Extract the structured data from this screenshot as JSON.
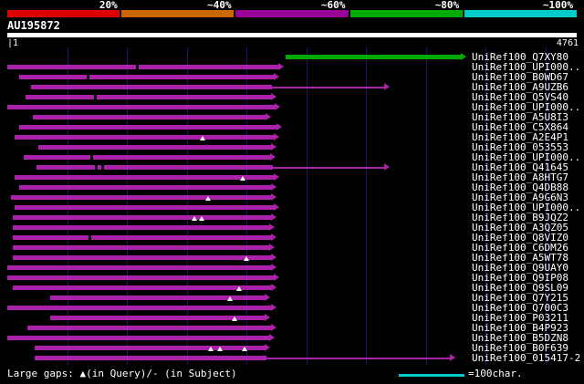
{
  "chart_data": {
    "type": "bar",
    "subtype": "blast-alignment-overview",
    "title": "AU195872",
    "x_axis": {
      "min": 1,
      "max": 4761,
      "gridline_interval": 500,
      "grid": true
    },
    "identity_scale": [
      {
        "label": "20%",
        "color": "#dd0000"
      },
      {
        "label": "~40%",
        "color": "#cc6600"
      },
      {
        "label": "~60%",
        "color": "#990099"
      },
      {
        "label": "~80%",
        "color": "#00aa00"
      },
      {
        "label": "~100%",
        "color": "#00cccc"
      }
    ],
    "hits": [
      {
        "label": "UniRef100_Q7XY80",
        "color": "#00aa00",
        "start": 2330,
        "end": 3790
      },
      {
        "label": "UniRef100_UPI000..",
        "color": "#aa22aa",
        "start": 1,
        "end": 2265,
        "dashes": [
          1085
        ]
      },
      {
        "label": "UniRef100_B0WD67",
        "color": "#aa22aa",
        "start": 100,
        "end": 2230,
        "dashes": [
          670
        ]
      },
      {
        "label": "UniRef100_A9UZB6",
        "color": "#aa22aa",
        "start": 200,
        "end": 2215,
        "thin_end": 3150
      },
      {
        "label": "UniRef100_Q5VS40",
        "color": "#aa22aa",
        "start": 155,
        "end": 2205,
        "dashes": [
          730
        ]
      },
      {
        "label": "UniRef100_UPI000..",
        "color": "#aa22aa",
        "start": 1,
        "end": 2235
      },
      {
        "label": "UniRef100_A5U8I3",
        "color": "#aa22aa",
        "start": 215,
        "end": 2160
      },
      {
        "label": "UniRef100_C5X864",
        "color": "#aa22aa",
        "start": 100,
        "end": 2250
      },
      {
        "label": "UniRef100_A2E4P1",
        "color": "#aa22aa",
        "start": 60,
        "end": 2230,
        "gaps": [
          1635
        ]
      },
      {
        "label": "UniRef100_053553",
        "color": "#aa22aa",
        "start": 260,
        "end": 2205
      },
      {
        "label": "UniRef100_UPI000..",
        "color": "#aa22aa",
        "start": 140,
        "end": 2195,
        "dashes": [
          700
        ]
      },
      {
        "label": "UniRef100_Q41645",
        "color": "#aa22aa",
        "start": 245,
        "end": 2220,
        "thin_end": 3150,
        "dashes": [
          740,
          795
        ]
      },
      {
        "label": "UniRef100_A8HTG7",
        "color": "#aa22aa",
        "start": 60,
        "end": 2230,
        "gaps": [
          1970
        ]
      },
      {
        "label": "UniRef100_Q4DB88",
        "color": "#aa22aa",
        "start": 100,
        "end": 2205
      },
      {
        "label": "UniRef100_A9G6N3",
        "color": "#aa22aa",
        "start": 30,
        "end": 2205,
        "gaps": [
          1680
        ]
      },
      {
        "label": "UniRef100_UPI000..",
        "color": "#aa22aa",
        "start": 60,
        "end": 2230
      },
      {
        "label": "UniRef100_B9JQZ2",
        "color": "#aa22aa",
        "start": 45,
        "end": 2205,
        "gaps": [
          1565,
          1625
        ]
      },
      {
        "label": "UniRef100_A3QZ05",
        "color": "#aa22aa",
        "start": 45,
        "end": 2190
      },
      {
        "label": "UniRef100_Q8VIZ0",
        "color": "#aa22aa",
        "start": 45,
        "end": 2205,
        "dashes": [
          690
        ]
      },
      {
        "label": "UniRef100_C6DM26",
        "color": "#aa22aa",
        "start": 45,
        "end": 2190
      },
      {
        "label": "UniRef100_A5WT78",
        "color": "#aa22aa",
        "start": 45,
        "end": 2205,
        "gaps": [
          2000
        ]
      },
      {
        "label": "UniRef100_Q9UAY0",
        "color": "#aa22aa",
        "start": 1,
        "end": 2205
      },
      {
        "label": "UniRef100_Q9IP08",
        "color": "#aa22aa",
        "start": 1,
        "end": 2230
      },
      {
        "label": "UniRef100_Q9SL09",
        "color": "#aa22aa",
        "start": 45,
        "end": 2205,
        "gaps": [
          1940
        ]
      },
      {
        "label": "UniRef100_Q7Y215",
        "color": "#aa22aa",
        "start": 360,
        "end": 2150,
        "gaps": [
          1860
        ]
      },
      {
        "label": "UniRef100_Q700C3",
        "color": "#aa22aa",
        "start": 1,
        "end": 2205
      },
      {
        "label": "UniRef100_P03211",
        "color": "#aa22aa",
        "start": 360,
        "end": 2150,
        "gaps": [
          1900
        ]
      },
      {
        "label": "UniRef100_B4P923",
        "color": "#aa22aa",
        "start": 170,
        "end": 2205
      },
      {
        "label": "UniRef100_B5DZN8",
        "color": "#aa22aa",
        "start": 1,
        "end": 2190
      },
      {
        "label": "UniRef100_B0F639",
        "color": "#aa22aa",
        "start": 230,
        "end": 2150,
        "gaps": [
          1700,
          1780,
          1985
        ]
      },
      {
        "label": "UniRef100_015417-2",
        "color": "#aa22aa",
        "start": 230,
        "end": 2170,
        "thin_end": 3700
      }
    ]
  },
  "ruler": {
    "start_label": "|1",
    "end_label": "4761"
  },
  "footer": {
    "gaps_legend": "Large gaps: ▲(in Query)/- (in Subject)",
    "scale_legend": "=100char.",
    "scale_bar_color": "#00cccc"
  },
  "colors": {
    "background": "#000000",
    "text": "#ffffff",
    "gridline": "#15156a",
    "ruler": "#ffffff"
  }
}
